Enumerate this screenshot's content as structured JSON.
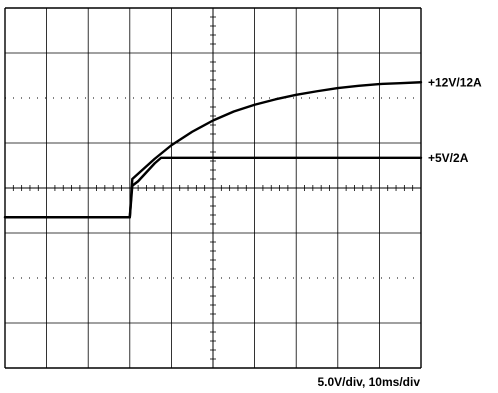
{
  "chart_data": {
    "type": "line",
    "x_divisions": 10,
    "y_divisions": 8,
    "grid": true,
    "scale_text": "5.0V/div, 10ms/div",
    "rise_div": 3.0,
    "series": [
      {
        "name": "+12V/12A",
        "color": "#000000",
        "x_div": [
          0.0,
          3.0,
          3.06,
          3.3,
          3.6,
          4.0,
          4.5,
          5.0,
          5.5,
          6.0,
          6.5,
          7.0,
          7.5,
          8.0,
          8.5,
          9.0,
          9.5,
          10.0
        ],
        "y_div": [
          -0.65,
          -0.65,
          0.2,
          0.4,
          0.65,
          0.95,
          1.25,
          1.5,
          1.7,
          1.85,
          1.97,
          2.07,
          2.15,
          2.22,
          2.27,
          2.31,
          2.33,
          2.35
        ]
      },
      {
        "name": "+5V/2A",
        "color": "#000000",
        "x_div": [
          0.0,
          3.0,
          3.06,
          3.2,
          3.4,
          3.6,
          3.75,
          10.0
        ],
        "y_div": [
          -0.65,
          -0.65,
          0.05,
          0.15,
          0.35,
          0.55,
          0.67,
          0.67
        ]
      }
    ]
  }
}
